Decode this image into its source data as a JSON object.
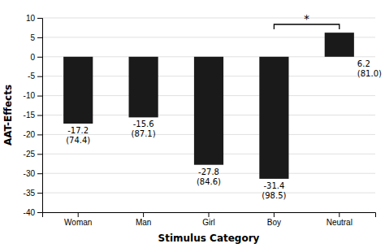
{
  "chart_data": {
    "type": "bar",
    "categories": [
      "Woman",
      "Man",
      "Girl",
      "Boy",
      "Neutral"
    ],
    "values": [
      -17.2,
      -15.6,
      -27.8,
      -31.4,
      6.2
    ],
    "sd_labels": [
      "(74.4)",
      "(87.1)",
      "(84.6)",
      "(98.5)",
      "(81.0)"
    ],
    "color": "#1a1a1a",
    "x_label": "Stimulus Category",
    "y_label": "AAT-Effects",
    "ylim": [
      -40,
      10
    ],
    "yticks": [
      -40,
      -35,
      -30,
      -25,
      -20,
      -15,
      -10,
      -5,
      0,
      5,
      10
    ],
    "grid": true,
    "data_labels": true,
    "significance": {
      "between": [
        "Boy",
        "Neutral"
      ],
      "label": "*"
    }
  }
}
